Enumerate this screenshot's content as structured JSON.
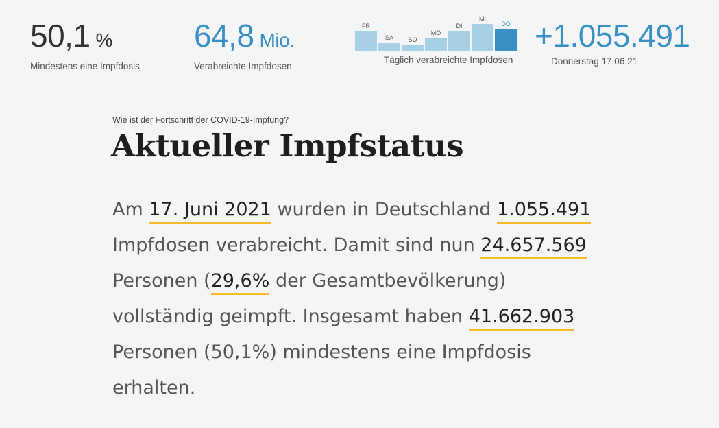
{
  "stats": {
    "first_dose": {
      "value": "50,1",
      "unit": "%",
      "label": "Mindestens eine Impfdosis"
    },
    "total_doses": {
      "value": "64,8",
      "unit": "Mio.",
      "label": "Verabreichte Impfdosen"
    },
    "daily_chart": {
      "caption": "Täglich verabreichte Impfdosen",
      "days": [
        {
          "label": "FR",
          "relative": 0.72
        },
        {
          "label": "SA",
          "relative": 0.3
        },
        {
          "label": "SO",
          "relative": 0.22
        },
        {
          "label": "MO",
          "relative": 0.47
        },
        {
          "label": "DI",
          "relative": 0.72
        },
        {
          "label": "MI",
          "relative": 0.98
        },
        {
          "label": "DO",
          "relative": 0.8
        }
      ],
      "active_day": "DO"
    },
    "latest": {
      "value": "+1.055.491",
      "label": "Donnerstag 17.06.21"
    }
  },
  "article": {
    "kicker": "Wie ist der Fortschritt der COVID-19-Impfung?",
    "headline": "Aktueller Impfstatus",
    "paragraph": {
      "t1": "Am ",
      "date": "17. Juni 2021",
      "t2": " wurden in Deutschland ",
      "doses_day": "1.055.491",
      "t3": " Impfdosen verabreicht. Damit sind nun ",
      "fully_vaccinated": "24.657.569",
      "t4": " Personen (",
      "fully_pct": "29,6%",
      "t5": " der Gesamtbevölkerung) vollständig geimpft. Insgesamt haben ",
      "at_least_one": "41.662.903",
      "t6": " Personen (50,1%) mindestens eine Impfdosis erhalten."
    }
  }
}
